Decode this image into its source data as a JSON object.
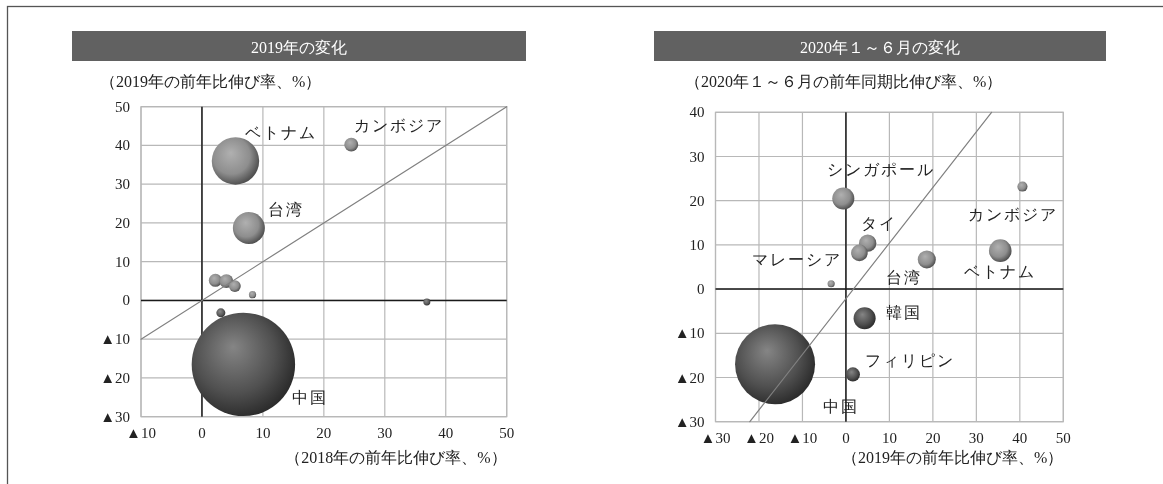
{
  "chart_data": [
    {
      "type": "bubble",
      "title": "2019年の変化",
      "ylabel": "（2019年の前年比伸び率、%）",
      "xlabel": "（2018年の前年比伸び率、%）",
      "xlim": [
        -10,
        50
      ],
      "ylim": [
        -30,
        50
      ],
      "xticks": [
        {
          "value": -10,
          "label": "▲10"
        },
        0,
        10,
        20,
        30,
        40,
        50
      ],
      "yticks": [
        {
          "value": -30,
          "label": "▲30"
        },
        {
          "value": -20,
          "label": "▲20"
        },
        {
          "value": -10,
          "label": "▲10"
        },
        0,
        10,
        20,
        30,
        40,
        50
      ],
      "grid": true,
      "series": [
        {
          "x": [
            5.5,
            24.5,
            7.7,
            2.2,
            4.0,
            5.4,
            8.3,
            3.1,
            36.9,
            6.8
          ],
          "values": [
            36,
            40.2,
            18.7,
            5.2,
            5.0,
            3.7,
            1.5,
            -3.2,
            -0.4,
            -16.5
          ],
          "sizes": [
            0.21,
            0.018,
            0.096,
            0.016,
            0.018,
            0.013,
            0.005,
            0.0076,
            0.0045,
            1
          ],
          "colors": [
            "#8e8e8e",
            "#8e8e8e",
            "#8e8e8e",
            "#8e8e8e",
            "#8e8e8e",
            "#8e8e8e",
            "#8e8e8e",
            "#5a5a5a",
            "#5a5a5a",
            "#505050"
          ]
        },
        {
          "type": "line",
          "x": [
            -10,
            50
          ],
          "values": [
            -10,
            50
          ],
          "color": "#808080"
        }
      ],
      "annotations": [
        {
          "text": "ベトナム",
          "x": 5.5,
          "y": 36
        },
        {
          "text": "カンボジア",
          "x": 24.5,
          "y": 40.2
        },
        {
          "text": "台湾",
          "x": 7.7,
          "y": 18.7
        },
        "中国"
      ]
    },
    {
      "type": "bubble",
      "title": "2020年１～６月の変化",
      "ylabel": "（2020年１～６月の前年同期比伸び率、%）",
      "xlabel": "（2019年の前年比伸び率、%）",
      "xlim": [
        -30,
        50
      ],
      "ylim": [
        -30,
        40
      ],
      "xticks": [
        {
          "value": -30,
          "label": "▲30"
        },
        {
          "value": -20,
          "label": "▲20"
        },
        {
          "value": -10,
          "label": "▲10"
        },
        0,
        10,
        20,
        30,
        40,
        50
      ],
      "yticks": [
        {
          "value": -30,
          "label": "▲30"
        },
        {
          "value": -20,
          "label": "▲20"
        },
        {
          "value": -10,
          "label": "▲10"
        },
        0,
        10,
        20,
        30,
        40
      ],
      "grid": true,
      "series": [
        {
          "x": [
            -0.6,
            40.6,
            5.0,
            3.1,
            18.6,
            35.5,
            -3.4,
            4.3,
            1.6,
            -16.3
          ],
          "values": [
            20.5,
            23.2,
            10.4,
            8.2,
            6.7,
            8.7,
            1.2,
            -6.6,
            -19.3,
            -17.0
          ],
          "sizes": [
            0.076,
            0.016,
            0.047,
            0.043,
            0.051,
            0.08,
            0.008,
            0.076,
            0.031,
            1
          ],
          "colors": [
            "#8e8e8e",
            "#8e8e8e",
            "#8e8e8e",
            "#8e8e8e",
            "#8e8e8e",
            "#8e8e8e",
            "#8e8e8e",
            "#505050",
            "#505050",
            "#505050"
          ]
        },
        {
          "type": "line",
          "x": [
            -22.1,
            33.5
          ],
          "values": [
            -30,
            40
          ],
          "color": "#808080"
        }
      ],
      "annotations": [
        {
          "text": "シンガポール",
          "x": -0.6,
          "y": 20.5
        },
        {
          "text": "タイ",
          "x": 5.0,
          "y": 10.4
        },
        {
          "text": "マレーシア",
          "x": 3.1,
          "y": 8.2
        },
        {
          "text": "台湾",
          "x": 18.6,
          "y": 6.7
        },
        {
          "text": "カンボジア",
          "x": 40.6,
          "y": 23.2
        },
        {
          "text": "ベトナム",
          "x": 35.5,
          "y": 8.7
        },
        {
          "text": "韓国",
          "x": 4.3,
          "y": -6.6
        },
        {
          "text": "フィリピン",
          "x": 1.6,
          "y": -19.3
        },
        "中国"
      ]
    }
  ]
}
